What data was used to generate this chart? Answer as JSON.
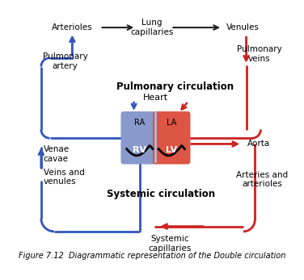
{
  "title": "Figure 7.12  Diagrammatic representation of the Double circulation",
  "blue_color": "#3355bb",
  "red_color": "#cc2222",
  "black_color": "#222222",
  "bg_color": "#ffffff",
  "heart_rv_color": "#8899cc",
  "heart_lv_color": "#dd5544",
  "pulmonary_label": "Pulmonary circulation",
  "systemic_label": "Systemic circulation",
  "heart_label": "Heart",
  "labels": {
    "arterioles": "Arterioles",
    "lung_cap": "Lung\ncapillaries",
    "venules": "Venules",
    "pulm_artery": "Pulmonary\nartery",
    "pulm_veins": "Pulmonary\nveins",
    "venae_cavae": "Venae\ncavae",
    "veins_venules": "Veins and\nvenules",
    "aorta": "Aorta",
    "arteries_arterioles": "Arteries and\narterioles",
    "systemic_cap": "Systemic\ncapillaries",
    "RA": "RA",
    "LA": "LA",
    "RV": "RV",
    "LV": "LV"
  }
}
